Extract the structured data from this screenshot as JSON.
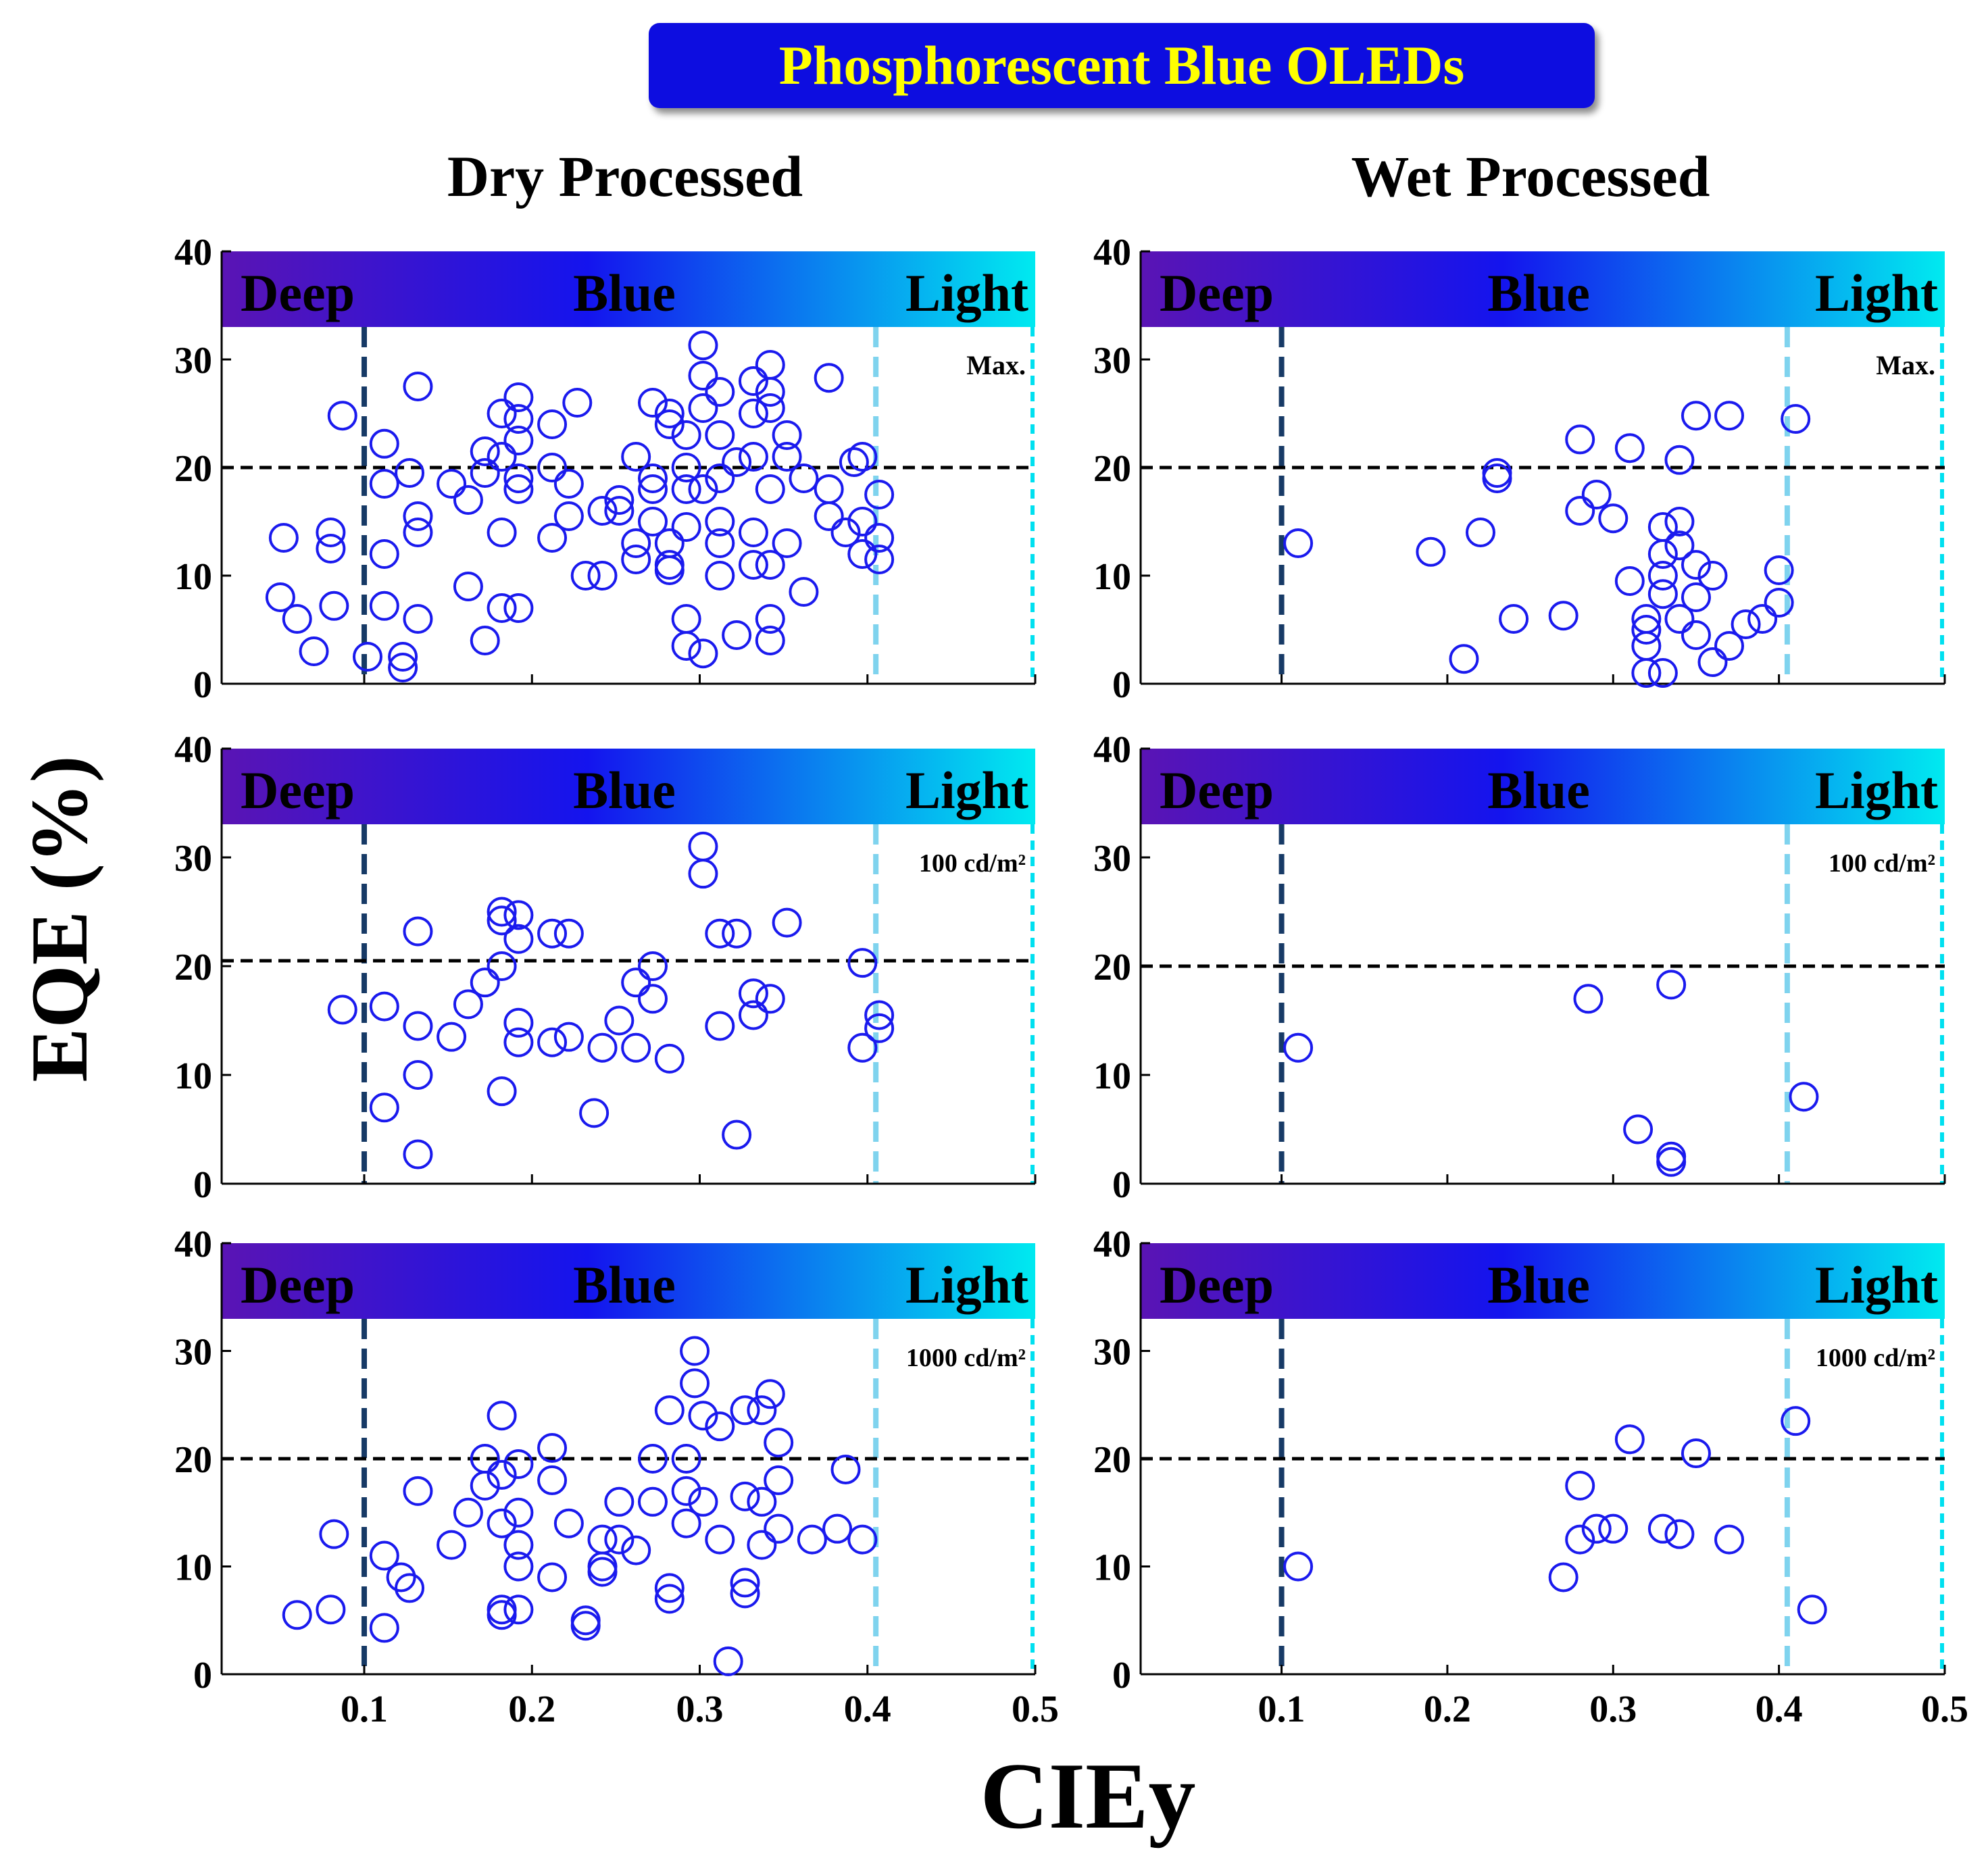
{
  "figure": {
    "banner_title": "Phosphorescent Blue OLEDs",
    "column_titles": [
      "Dry Processed",
      "Wet Processed"
    ],
    "y_label": "EQE (%)",
    "x_label": "CIEy",
    "band_labels": [
      "Deep",
      "Blue",
      "Light"
    ],
    "colors": {
      "banner_fill": "#1010e0",
      "banner_text": "#ffff00",
      "marker": "#1a1aee",
      "deep_line": "#173a66",
      "light_line": "#7fd3ee",
      "edge_line": "#00e0f0",
      "threshold_line": "#000000",
      "gradient": [
        "#5a14b4",
        "#1414ee",
        "#00eaf0"
      ]
    }
  },
  "chart_data": [
    {
      "type": "scatter",
      "column": "Dry Processed",
      "annotation": "Max.",
      "xlim": [
        0.015,
        0.5
      ],
      "ylim": [
        0,
        40
      ],
      "xticks": [
        "0.1",
        "0.2",
        "0.3",
        "0.4",
        "0.5"
      ],
      "yticks": [
        "0",
        "10",
        "20",
        "30",
        "40"
      ],
      "threshold_y": 20,
      "deep_x": 0.1,
      "light_x": 0.405,
      "edge_x": 0.5,
      "points": [
        [
          0.052,
          13.5
        ],
        [
          0.05,
          8
        ],
        [
          0.06,
          6
        ],
        [
          0.07,
          3
        ],
        [
          0.08,
          12.5
        ],
        [
          0.08,
          14
        ],
        [
          0.082,
          7.2
        ],
        [
          0.087,
          24.8
        ],
        [
          0.102,
          2.5
        ],
        [
          0.112,
          22.2
        ],
        [
          0.112,
          18.5
        ],
        [
          0.112,
          12
        ],
        [
          0.112,
          7.2
        ],
        [
          0.123,
          2.5
        ],
        [
          0.123,
          1.5
        ],
        [
          0.127,
          19.5
        ],
        [
          0.132,
          27.5
        ],
        [
          0.132,
          15.5
        ],
        [
          0.132,
          14
        ],
        [
          0.132,
          6
        ],
        [
          0.152,
          18.5
        ],
        [
          0.162,
          17
        ],
        [
          0.162,
          9
        ],
        [
          0.172,
          4
        ],
        [
          0.172,
          21.5
        ],
        [
          0.172,
          19.5
        ],
        [
          0.182,
          25
        ],
        [
          0.182,
          21
        ],
        [
          0.182,
          14
        ],
        [
          0.182,
          7
        ],
        [
          0.192,
          26.5
        ],
        [
          0.192,
          24.5
        ],
        [
          0.192,
          22.5
        ],
        [
          0.192,
          19
        ],
        [
          0.192,
          18
        ],
        [
          0.192,
          7
        ],
        [
          0.212,
          24
        ],
        [
          0.212,
          20
        ],
        [
          0.212,
          13.5
        ],
        [
          0.222,
          18.5
        ],
        [
          0.222,
          15.5
        ],
        [
          0.227,
          26
        ],
        [
          0.232,
          10
        ],
        [
          0.242,
          16
        ],
        [
          0.242,
          10
        ],
        [
          0.252,
          17
        ],
        [
          0.252,
          16
        ],
        [
          0.262,
          21
        ],
        [
          0.262,
          13
        ],
        [
          0.262,
          11.5
        ],
        [
          0.272,
          26
        ],
        [
          0.272,
          19
        ],
        [
          0.272,
          18
        ],
        [
          0.272,
          15
        ],
        [
          0.282,
          25
        ],
        [
          0.282,
          24
        ],
        [
          0.282,
          13
        ],
        [
          0.282,
          11
        ],
        [
          0.282,
          10.5
        ],
        [
          0.292,
          23
        ],
        [
          0.292,
          20
        ],
        [
          0.292,
          18
        ],
        [
          0.292,
          14.5
        ],
        [
          0.292,
          6
        ],
        [
          0.292,
          3.5
        ],
        [
          0.302,
          31.3
        ],
        [
          0.302,
          28.5
        ],
        [
          0.302,
          25.5
        ],
        [
          0.302,
          18
        ],
        [
          0.302,
          2.8
        ],
        [
          0.312,
          27
        ],
        [
          0.312,
          23
        ],
        [
          0.312,
          19
        ],
        [
          0.312,
          15
        ],
        [
          0.312,
          13
        ],
        [
          0.312,
          10
        ],
        [
          0.322,
          20.5
        ],
        [
          0.322,
          4.5
        ],
        [
          0.332,
          28
        ],
        [
          0.332,
          25
        ],
        [
          0.332,
          21
        ],
        [
          0.332,
          14
        ],
        [
          0.332,
          11
        ],
        [
          0.342,
          29.5
        ],
        [
          0.342,
          27
        ],
        [
          0.342,
          25.5
        ],
        [
          0.342,
          18
        ],
        [
          0.342,
          11
        ],
        [
          0.342,
          6
        ],
        [
          0.342,
          4
        ],
        [
          0.352,
          23
        ],
        [
          0.352,
          21
        ],
        [
          0.352,
          13
        ],
        [
          0.362,
          8.5
        ],
        [
          0.362,
          19
        ],
        [
          0.377,
          28.3
        ],
        [
          0.377,
          18
        ],
        [
          0.377,
          15.5
        ],
        [
          0.387,
          14
        ],
        [
          0.392,
          20.5
        ],
        [
          0.397,
          21
        ],
        [
          0.397,
          15
        ],
        [
          0.397,
          12
        ],
        [
          0.407,
          17.5
        ],
        [
          0.407,
          13.5
        ],
        [
          0.407,
          11.5
        ]
      ]
    },
    {
      "type": "scatter",
      "column": "Wet Processed",
      "annotation": "Max.",
      "xlim": [
        0.015,
        0.5
      ],
      "ylim": [
        0,
        40
      ],
      "xticks": [
        "0.1",
        "0.2",
        "0.3",
        "0.4",
        "0.5"
      ],
      "yticks": [
        "0",
        "10",
        "20",
        "30",
        "40"
      ],
      "threshold_y": 20,
      "deep_x": 0.1,
      "light_x": 0.405,
      "edge_x": 0.5,
      "points": [
        [
          0.11,
          13
        ],
        [
          0.19,
          12.2
        ],
        [
          0.21,
          2.3
        ],
        [
          0.22,
          14
        ],
        [
          0.23,
          19.5
        ],
        [
          0.23,
          19
        ],
        [
          0.24,
          6
        ],
        [
          0.27,
          6.3
        ],
        [
          0.28,
          22.6
        ],
        [
          0.28,
          16
        ],
        [
          0.29,
          17.5
        ],
        [
          0.3,
          15.3
        ],
        [
          0.31,
          21.8
        ],
        [
          0.31,
          9.5
        ],
        [
          0.32,
          6
        ],
        [
          0.32,
          5
        ],
        [
          0.32,
          3.5
        ],
        [
          0.32,
          1
        ],
        [
          0.33,
          14.5
        ],
        [
          0.33,
          12
        ],
        [
          0.33,
          10
        ],
        [
          0.33,
          8.3
        ],
        [
          0.33,
          1
        ],
        [
          0.34,
          20.7
        ],
        [
          0.34,
          15
        ],
        [
          0.34,
          12.8
        ],
        [
          0.34,
          6
        ],
        [
          0.35,
          24.8
        ],
        [
          0.35,
          11
        ],
        [
          0.35,
          8
        ],
        [
          0.35,
          4.5
        ],
        [
          0.36,
          10
        ],
        [
          0.36,
          2
        ],
        [
          0.37,
          24.8
        ],
        [
          0.37,
          3.5
        ],
        [
          0.38,
          5.5
        ],
        [
          0.39,
          6
        ],
        [
          0.4,
          10.5
        ],
        [
          0.4,
          7.5
        ],
        [
          0.41,
          24.5
        ]
      ]
    },
    {
      "type": "scatter",
      "column": "Dry Processed",
      "annotation": "100 cd/m²",
      "xlim": [
        0.015,
        0.5
      ],
      "ylim": [
        0,
        40
      ],
      "xticks": [
        "0.1",
        "0.2",
        "0.3",
        "0.4",
        "0.5"
      ],
      "yticks": [
        "0",
        "10",
        "20",
        "30",
        "40"
      ],
      "threshold_y": 20.5,
      "deep_x": 0.1,
      "light_x": 0.405,
      "edge_x": 0.5,
      "points": [
        [
          0.087,
          16
        ],
        [
          0.112,
          16.3
        ],
        [
          0.112,
          7
        ],
        [
          0.132,
          23.2
        ],
        [
          0.132,
          14.5
        ],
        [
          0.132,
          10
        ],
        [
          0.132,
          2.7
        ],
        [
          0.152,
          13.5
        ],
        [
          0.162,
          16.5
        ],
        [
          0.172,
          18.5
        ],
        [
          0.182,
          25
        ],
        [
          0.182,
          24.2
        ],
        [
          0.182,
          20
        ],
        [
          0.182,
          8.5
        ],
        [
          0.192,
          24.7
        ],
        [
          0.192,
          22.5
        ],
        [
          0.192,
          14.8
        ],
        [
          0.192,
          13
        ],
        [
          0.212,
          23
        ],
        [
          0.212,
          13
        ],
        [
          0.222,
          23
        ],
        [
          0.222,
          13.5
        ],
        [
          0.242,
          12.5
        ],
        [
          0.237,
          6.5
        ],
        [
          0.252,
          15
        ],
        [
          0.262,
          18.5
        ],
        [
          0.262,
          12.5
        ],
        [
          0.272,
          20
        ],
        [
          0.272,
          17
        ],
        [
          0.282,
          11.5
        ],
        [
          0.302,
          31
        ],
        [
          0.302,
          28.5
        ],
        [
          0.312,
          23
        ],
        [
          0.312,
          14.5
        ],
        [
          0.322,
          23
        ],
        [
          0.322,
          4.5
        ],
        [
          0.332,
          17.5
        ],
        [
          0.332,
          15.5
        ],
        [
          0.342,
          17
        ],
        [
          0.352,
          24
        ],
        [
          0.397,
          20.3
        ],
        [
          0.397,
          12.5
        ],
        [
          0.407,
          15.5
        ],
        [
          0.407,
          14.3
        ]
      ]
    },
    {
      "type": "scatter",
      "column": "Wet Processed",
      "annotation": "100 cd/m²",
      "xlim": [
        0.015,
        0.5
      ],
      "ylim": [
        0,
        40
      ],
      "xticks": [
        "0.1",
        "0.2",
        "0.3",
        "0.4",
        "0.5"
      ],
      "yticks": [
        "0",
        "10",
        "20",
        "30",
        "40"
      ],
      "threshold_y": 20,
      "deep_x": 0.1,
      "light_x": 0.405,
      "edge_x": 0.5,
      "points": [
        [
          0.11,
          12.5
        ],
        [
          0.285,
          17
        ],
        [
          0.315,
          5
        ],
        [
          0.335,
          18.3
        ],
        [
          0.335,
          2.5
        ],
        [
          0.335,
          2
        ],
        [
          0.415,
          8
        ]
      ]
    },
    {
      "type": "scatter",
      "column": "Dry Processed",
      "annotation": "1000 cd/m²",
      "xlim": [
        0.015,
        0.5
      ],
      "ylim": [
        0,
        40
      ],
      "xticks": [
        "0.1",
        "0.2",
        "0.3",
        "0.4",
        "0.5"
      ],
      "yticks": [
        "0",
        "10",
        "20",
        "30",
        "40"
      ],
      "threshold_y": 20,
      "deep_x": 0.1,
      "light_x": 0.405,
      "edge_x": 0.5,
      "points": [
        [
          0.06,
          5.5
        ],
        [
          0.08,
          6
        ],
        [
          0.082,
          13
        ],
        [
          0.112,
          11
        ],
        [
          0.112,
          4.3
        ],
        [
          0.122,
          9
        ],
        [
          0.127,
          8
        ],
        [
          0.132,
          17
        ],
        [
          0.152,
          12
        ],
        [
          0.162,
          15
        ],
        [
          0.172,
          20
        ],
        [
          0.172,
          17.5
        ],
        [
          0.182,
          24
        ],
        [
          0.182,
          18.5
        ],
        [
          0.182,
          14
        ],
        [
          0.182,
          6
        ],
        [
          0.182,
          5.5
        ],
        [
          0.192,
          19.5
        ],
        [
          0.192,
          15
        ],
        [
          0.192,
          12
        ],
        [
          0.192,
          10
        ],
        [
          0.192,
          6
        ],
        [
          0.212,
          21
        ],
        [
          0.212,
          18
        ],
        [
          0.212,
          9
        ],
        [
          0.222,
          14
        ],
        [
          0.232,
          5
        ],
        [
          0.232,
          4.5
        ],
        [
          0.242,
          12.5
        ],
        [
          0.242,
          10
        ],
        [
          0.242,
          9.5
        ],
        [
          0.252,
          16
        ],
        [
          0.252,
          12.5
        ],
        [
          0.262,
          11.5
        ],
        [
          0.272,
          20
        ],
        [
          0.272,
          16
        ],
        [
          0.282,
          24.5
        ],
        [
          0.282,
          8
        ],
        [
          0.282,
          7
        ],
        [
          0.292,
          20
        ],
        [
          0.292,
          17
        ],
        [
          0.292,
          14
        ],
        [
          0.297,
          30
        ],
        [
          0.297,
          27
        ],
        [
          0.302,
          24
        ],
        [
          0.302,
          16
        ],
        [
          0.312,
          23
        ],
        [
          0.312,
          12.5
        ],
        [
          0.317,
          1.2
        ],
        [
          0.327,
          24.5
        ],
        [
          0.327,
          16.5
        ],
        [
          0.327,
          8.5
        ],
        [
          0.327,
          7.5
        ],
        [
          0.337,
          24.5
        ],
        [
          0.337,
          16
        ],
        [
          0.337,
          12
        ],
        [
          0.342,
          26
        ],
        [
          0.347,
          21.5
        ],
        [
          0.347,
          18
        ],
        [
          0.347,
          13.5
        ],
        [
          0.367,
          12.5
        ],
        [
          0.382,
          13.5
        ],
        [
          0.387,
          19
        ],
        [
          0.397,
          12.5
        ]
      ]
    },
    {
      "type": "scatter",
      "column": "Wet Processed",
      "annotation": "1000 cd/m²",
      "xlim": [
        0.015,
        0.5
      ],
      "ylim": [
        0,
        40
      ],
      "xticks": [
        "0.1",
        "0.2",
        "0.3",
        "0.4",
        "0.5"
      ],
      "yticks": [
        "0",
        "10",
        "20",
        "30",
        "40"
      ],
      "threshold_y": 20,
      "deep_x": 0.1,
      "light_x": 0.405,
      "edge_x": 0.5,
      "points": [
        [
          0.11,
          10
        ],
        [
          0.27,
          9
        ],
        [
          0.28,
          17.5
        ],
        [
          0.28,
          12.5
        ],
        [
          0.29,
          13.5
        ],
        [
          0.3,
          13.5
        ],
        [
          0.31,
          21.8
        ],
        [
          0.33,
          13.5
        ],
        [
          0.34,
          13
        ],
        [
          0.35,
          20.5
        ],
        [
          0.37,
          12.5
        ],
        [
          0.41,
          23.5
        ],
        [
          0.42,
          6
        ]
      ]
    }
  ]
}
